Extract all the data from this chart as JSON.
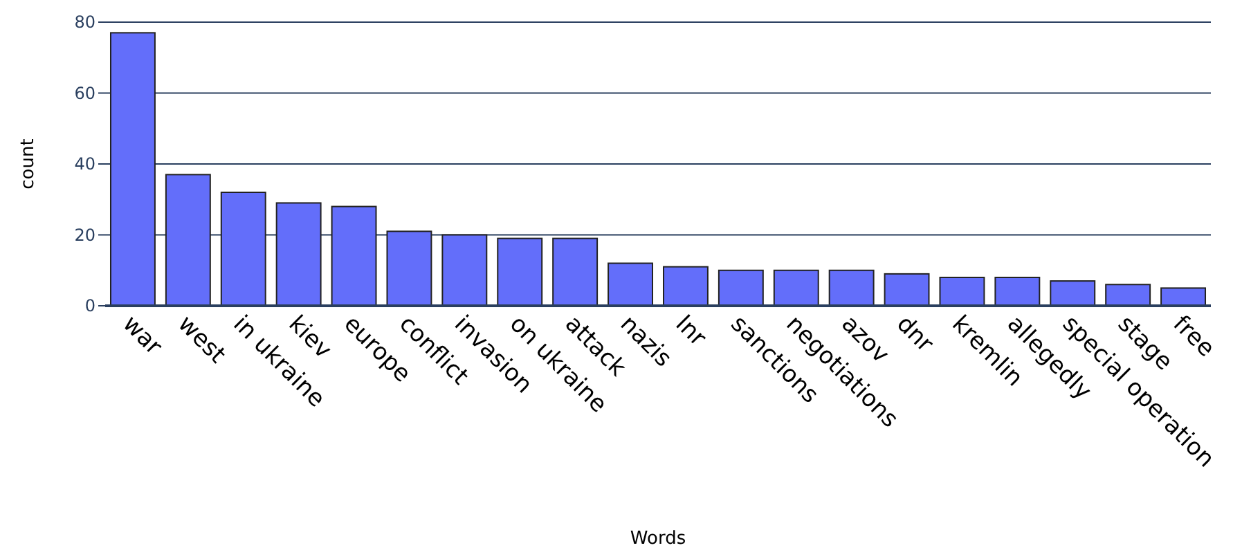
{
  "chart_data": {
    "type": "bar",
    "xlabel": "Words",
    "ylabel": "count",
    "categories": [
      "war",
      "west",
      "in ukraine",
      "kiev",
      "europe",
      "conflict",
      "invasion",
      "on ukraine",
      "attack",
      "nazis",
      "lnr",
      "sanctions",
      "negotiations",
      "azov",
      "dnr",
      "kremlin",
      "allegedly",
      "special operation",
      "stage",
      "free"
    ],
    "values": [
      77,
      37,
      32,
      29,
      28,
      21,
      20,
      19,
      19,
      12,
      11,
      10,
      10,
      10,
      9,
      8,
      8,
      7,
      6,
      5
    ],
    "color": "#636efa",
    "ylim": [
      0,
      80
    ],
    "yticks": [
      0,
      20,
      40,
      60,
      80
    ],
    "grid": "y"
  }
}
